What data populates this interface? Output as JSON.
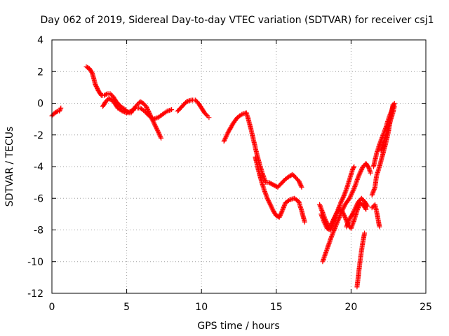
{
  "chart_data": {
    "type": "scatter",
    "title": "Day 062 of 2019, Sidereal Day-to-day VTEC variation (SDTVAR) for receiver csj1",
    "xlabel": "GPS time / hours",
    "ylabel": "SDTVAR / TECUs",
    "xlim": [
      0,
      25
    ],
    "ylim": [
      -12,
      4
    ],
    "x_ticks": [
      0,
      5,
      10,
      15,
      20,
      25
    ],
    "y_ticks": [
      -12,
      -10,
      -8,
      -6,
      -4,
      -2,
      0,
      2,
      4
    ],
    "grid": true,
    "marker": "plus",
    "color": "#ff0000",
    "series": [
      {
        "segments": [
          [
            [
              0.0,
              -0.8
            ],
            [
              0.2,
              -0.6
            ],
            [
              0.4,
              -0.5
            ],
            [
              0.5,
              -0.5
            ],
            [
              0.6,
              -0.3
            ]
          ],
          [
            [
              2.3,
              2.3
            ],
            [
              2.5,
              2.2
            ],
            [
              2.7,
              1.9
            ],
            [
              2.9,
              1.2
            ],
            [
              3.1,
              0.8
            ],
            [
              3.3,
              0.5
            ],
            [
              3.5,
              0.5
            ],
            [
              3.7,
              0.6
            ],
            [
              3.9,
              0.6
            ],
            [
              4.1,
              0.4
            ],
            [
              4.3,
              0.1
            ],
            [
              4.6,
              -0.2
            ],
            [
              4.9,
              -0.4
            ],
            [
              5.1,
              -0.6
            ],
            [
              5.3,
              -0.6
            ],
            [
              5.5,
              -0.3
            ],
            [
              5.7,
              -0.1
            ],
            [
              5.9,
              0.1
            ],
            [
              6.1,
              0.0
            ],
            [
              6.3,
              -0.2
            ],
            [
              6.5,
              -0.6
            ],
            [
              6.7,
              -1.0
            ],
            [
              6.9,
              -1.4
            ],
            [
              7.1,
              -1.8
            ],
            [
              7.3,
              -2.2
            ]
          ],
          [
            [
              3.4,
              -0.2
            ],
            [
              3.6,
              0.1
            ],
            [
              3.8,
              0.3
            ],
            [
              4.0,
              0.2
            ],
            [
              4.2,
              0.0
            ],
            [
              4.4,
              -0.3
            ],
            [
              4.7,
              -0.5
            ],
            [
              5.0,
              -0.6
            ],
            [
              5.3,
              -0.5
            ],
            [
              5.6,
              -0.3
            ],
            [
              5.9,
              -0.3
            ],
            [
              6.2,
              -0.5
            ],
            [
              6.5,
              -0.8
            ],
            [
              6.8,
              -1.0
            ],
            [
              7.1,
              -0.9
            ],
            [
              7.4,
              -0.7
            ],
            [
              7.7,
              -0.5
            ],
            [
              8.0,
              -0.4
            ]
          ],
          [
            [
              8.4,
              -0.5
            ],
            [
              8.7,
              -0.2
            ],
            [
              9.0,
              0.1
            ],
            [
              9.3,
              0.2
            ],
            [
              9.6,
              0.2
            ],
            [
              9.8,
              0.0
            ],
            [
              10.0,
              -0.3
            ],
            [
              10.2,
              -0.6
            ],
            [
              10.4,
              -0.8
            ],
            [
              10.5,
              -0.9
            ]
          ],
          [
            [
              11.5,
              -2.4
            ],
            [
              11.8,
              -1.8
            ],
            [
              12.1,
              -1.3
            ],
            [
              12.4,
              -0.9
            ],
            [
              12.7,
              -0.7
            ],
            [
              13.0,
              -0.6
            ],
            [
              13.1,
              -0.9
            ],
            [
              13.3,
              -1.6
            ],
            [
              13.5,
              -2.4
            ],
            [
              13.7,
              -3.2
            ],
            [
              13.9,
              -3.9
            ],
            [
              14.1,
              -4.5
            ],
            [
              14.3,
              -5.0
            ],
            [
              14.5,
              -5.0
            ],
            [
              14.7,
              -5.1
            ],
            [
              14.9,
              -5.2
            ],
            [
              15.1,
              -5.3
            ],
            [
              15.3,
              -5.1
            ],
            [
              15.6,
              -4.8
            ],
            [
              15.9,
              -4.6
            ],
            [
              16.1,
              -4.5
            ],
            [
              16.3,
              -4.7
            ],
            [
              16.5,
              -4.9
            ],
            [
              16.7,
              -5.3
            ]
          ],
          [
            [
              13.6,
              -3.4
            ],
            [
              13.8,
              -4.2
            ],
            [
              14.0,
              -4.9
            ],
            [
              14.2,
              -5.5
            ],
            [
              14.4,
              -6.0
            ],
            [
              14.6,
              -6.4
            ],
            [
              14.8,
              -6.8
            ],
            [
              15.0,
              -7.1
            ],
            [
              15.2,
              -7.2
            ],
            [
              15.4,
              -6.8
            ],
            [
              15.6,
              -6.3
            ],
            [
              15.9,
              -6.1
            ],
            [
              16.2,
              -6.0
            ],
            [
              16.5,
              -6.2
            ],
            [
              16.7,
              -6.8
            ],
            [
              16.9,
              -7.5
            ]
          ],
          [
            [
              17.9,
              -6.4
            ],
            [
              18.1,
              -6.9
            ],
            [
              18.3,
              -7.4
            ],
            [
              18.5,
              -7.8
            ],
            [
              18.7,
              -7.6
            ],
            [
              18.9,
              -7.2
            ],
            [
              19.1,
              -6.8
            ],
            [
              19.3,
              -6.3
            ],
            [
              19.5,
              -5.9
            ],
            [
              19.7,
              -5.4
            ],
            [
              19.9,
              -4.8
            ],
            [
              20.1,
              -4.2
            ],
            [
              20.2,
              -4.0
            ]
          ],
          [
            [
              18.0,
              -7.0
            ],
            [
              18.2,
              -7.5
            ],
            [
              18.4,
              -7.9
            ],
            [
              18.6,
              -8.0
            ],
            [
              18.8,
              -7.6
            ],
            [
              19.0,
              -7.0
            ],
            [
              19.2,
              -6.7
            ],
            [
              19.4,
              -6.8
            ],
            [
              19.6,
              -7.2
            ],
            [
              19.8,
              -7.7
            ],
            [
              20.0,
              -7.9
            ],
            [
              20.2,
              -7.4
            ],
            [
              20.4,
              -6.8
            ],
            [
              20.6,
              -6.3
            ],
            [
              20.8,
              -6.4
            ],
            [
              21.0,
              -6.7
            ]
          ],
          [
            [
              18.1,
              -10.0
            ],
            [
              18.4,
              -9.2
            ],
            [
              18.7,
              -8.4
            ],
            [
              19.0,
              -7.7
            ],
            [
              19.3,
              -7.0
            ],
            [
              19.6,
              -6.4
            ],
            [
              19.9,
              -6.0
            ],
            [
              20.2,
              -5.4
            ],
            [
              20.5,
              -4.6
            ],
            [
              20.8,
              -4.0
            ],
            [
              21.0,
              -3.8
            ],
            [
              21.2,
              -4.1
            ],
            [
              21.3,
              -4.4
            ]
          ],
          [
            [
              19.7,
              -7.8
            ],
            [
              19.9,
              -7.3
            ],
            [
              20.1,
              -7.0
            ],
            [
              20.3,
              -6.6
            ],
            [
              20.5,
              -6.2
            ],
            [
              20.7,
              -6.0
            ],
            [
              20.9,
              -6.2
            ],
            [
              21.1,
              -6.5
            ]
          ],
          [
            [
              20.4,
              -11.6
            ],
            [
              20.5,
              -10.8
            ],
            [
              20.6,
              -10.0
            ],
            [
              20.7,
              -9.3
            ],
            [
              20.8,
              -8.7
            ],
            [
              20.9,
              -8.2
            ]
          ],
          [
            [
              21.4,
              -5.8
            ],
            [
              21.6,
              -5.3
            ],
            [
              21.7,
              -4.6
            ],
            [
              21.9,
              -4.0
            ],
            [
              22.1,
              -3.3
            ],
            [
              22.3,
              -2.6
            ],
            [
              22.5,
              -1.8
            ],
            [
              22.6,
              -1.2
            ],
            [
              22.7,
              -0.6
            ],
            [
              22.8,
              -0.1
            ]
          ],
          [
            [
              21.4,
              -6.6
            ],
            [
              21.6,
              -6.4
            ],
            [
              21.7,
              -6.8
            ],
            [
              21.8,
              -7.3
            ],
            [
              21.9,
              -7.8
            ]
          ],
          [
            [
              21.5,
              -4.0
            ],
            [
              21.7,
              -3.2
            ],
            [
              21.9,
              -2.6
            ],
            [
              22.1,
              -2.1
            ],
            [
              22.3,
              -1.6
            ],
            [
              22.5,
              -1.0
            ],
            [
              22.7,
              -0.5
            ],
            [
              22.9,
              0.0
            ]
          ],
          [
            [
              22.0,
              -3.0
            ],
            [
              22.2,
              -2.4
            ],
            [
              22.4,
              -1.8
            ],
            [
              22.6,
              -1.2
            ],
            [
              22.8,
              -0.6
            ],
            [
              22.9,
              -0.2
            ]
          ]
        ]
      }
    ]
  }
}
